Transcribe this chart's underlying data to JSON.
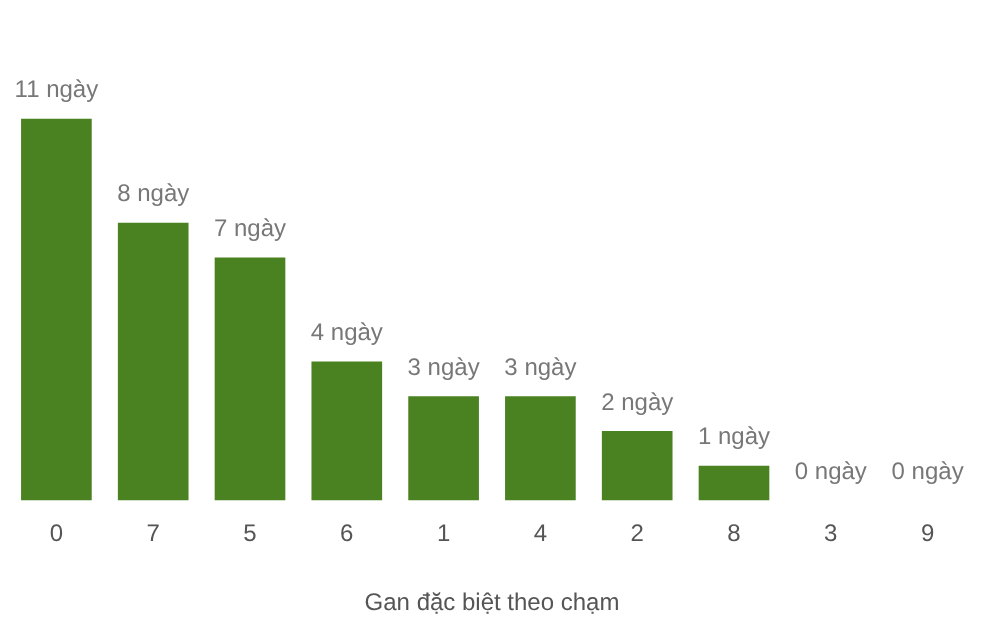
{
  "chart_data": {
    "type": "bar",
    "xlabel": "Gan đặc biệt theo chạm",
    "categories": [
      "0",
      "7",
      "5",
      "6",
      "1",
      "4",
      "2",
      "8",
      "3",
      "9"
    ],
    "values": [
      11,
      8,
      7,
      4,
      3,
      3,
      2,
      1,
      0,
      0
    ],
    "value_labels": [
      "11 ngày",
      "8 ngày",
      "7 ngày",
      "4 ngày",
      "3 ngày",
      "3 ngày",
      "2 ngày",
      "1 ngày",
      "0 ngày",
      "0 ngày"
    ],
    "color": "#4a8121",
    "tick_labels": "x",
    "grid": false,
    "legend": false
  }
}
